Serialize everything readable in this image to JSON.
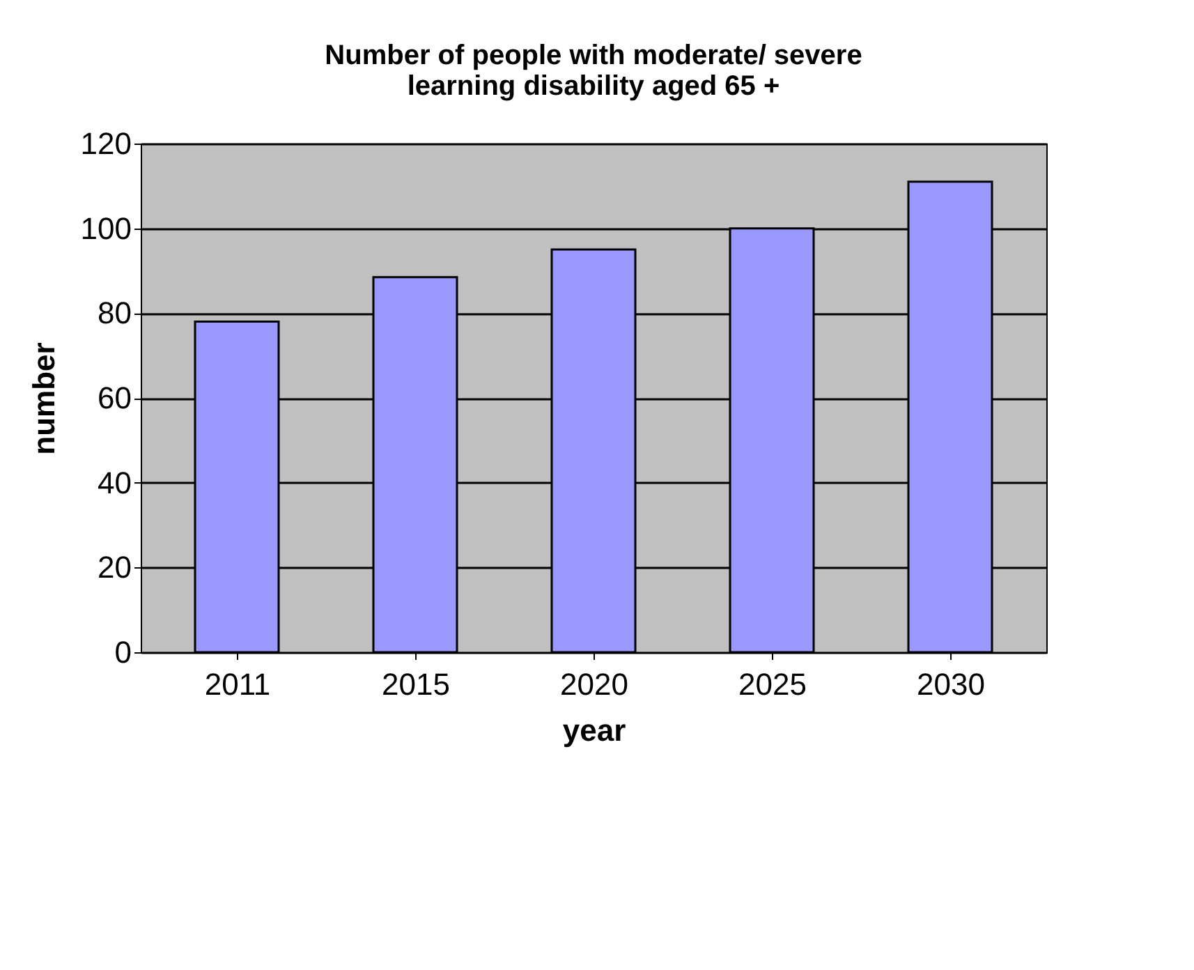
{
  "chart_data": {
    "type": "bar",
    "title": "Number of people with moderate/ severe learning disability aged 65 +",
    "xlabel": "year",
    "ylabel": "number",
    "categories": [
      "2011",
      "2015",
      "2020",
      "2025",
      "2030"
    ],
    "values": [
      78,
      88.5,
      95,
      100,
      111
    ],
    "color": "#9999ff",
    "ylim": [
      0,
      120
    ],
    "yticks": [
      0,
      20,
      40,
      60,
      80,
      100,
      120
    ],
    "grid": "y"
  }
}
